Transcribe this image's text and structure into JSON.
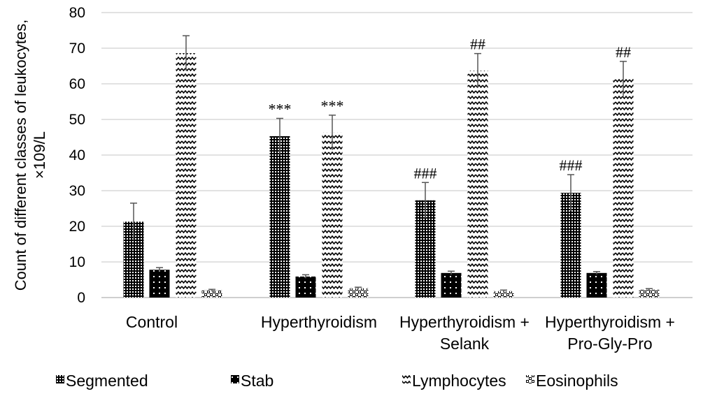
{
  "chart_data": {
    "type": "bar",
    "title": "",
    "xlabel": "",
    "ylabel": [
      "Count of different classes of leukocytes,",
      "×109/L"
    ],
    "ylim": [
      0,
      80
    ],
    "yticks": [
      "0",
      "10",
      "20",
      "30",
      "40",
      "50",
      "60",
      "70",
      "80"
    ],
    "grid": true,
    "legend_position": "bottom",
    "categories": [
      [
        "Control"
      ],
      [
        "Hyperthyroidism"
      ],
      [
        "Hyperthyroidism +",
        "Selank"
      ],
      [
        "Hyperthyroidism +",
        "Pro-Gly-Pro"
      ]
    ],
    "series": [
      {
        "name": "Segmented",
        "pattern": "dense-dots",
        "values": [
          21.3,
          45.3,
          27.3,
          29.4
        ],
        "errors": [
          5.2,
          5.0,
          5.0,
          5.1
        ],
        "annotations": [
          "",
          "***",
          "###",
          "###"
        ]
      },
      {
        "name": "Stab",
        "pattern": "white-dots-on-black",
        "values": [
          7.8,
          5.9,
          6.9,
          6.9
        ],
        "errors": [
          0.6,
          0.5,
          0.5,
          0.4
        ],
        "annotations": [
          "",
          "",
          "",
          ""
        ]
      },
      {
        "name": "Lymphocytes",
        "pattern": "zigzag",
        "values": [
          68.6,
          46.3,
          63.7,
          61.4
        ],
        "errors": [
          4.9,
          4.9,
          4.8,
          4.9
        ],
        "annotations": [
          "",
          "***",
          "##",
          "##"
        ]
      },
      {
        "name": "Eosinophils",
        "pattern": "checker",
        "values": [
          2.0,
          2.6,
          1.8,
          2.2
        ],
        "errors": [
          0.3,
          0.3,
          0.3,
          0.3
        ],
        "annotations": [
          "",
          "",
          "",
          ""
        ]
      }
    ]
  }
}
